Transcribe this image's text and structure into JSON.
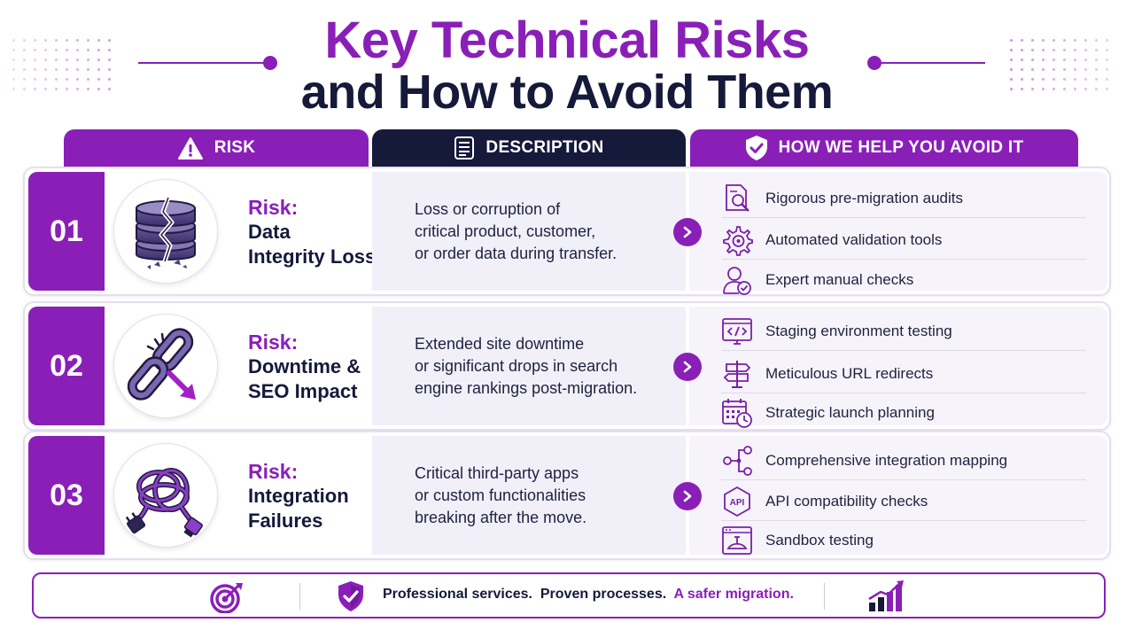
{
  "title": {
    "line1": "Key Technical Risks",
    "line2": "and How to Avoid Them"
  },
  "columns": {
    "risk": "RISK",
    "description": "DESCRIPTION",
    "help": "HOW WE HELP YOU AVOID IT"
  },
  "colors": {
    "accent": "#8a1fb8",
    "dark": "#15193a",
    "description_bg": "#f1eff8",
    "help_bg": "#f6f3fa"
  },
  "rows": [
    {
      "number": "01",
      "risk_label": "Risk:",
      "risk_name_1": "Data",
      "risk_name_2": "Integrity Loss",
      "icon": "broken-database-icon",
      "description_1": "Loss or corruption of",
      "description_2": "critical product, customer,",
      "description_3": "or order data during transfer.",
      "help": [
        {
          "icon": "document-magnifier-icon",
          "text": "Rigorous pre-migration audits"
        },
        {
          "icon": "gear-icon",
          "text": "Automated validation tools"
        },
        {
          "icon": "user-check-icon",
          "text": "Expert manual checks"
        }
      ]
    },
    {
      "number": "02",
      "risk_label": "Risk:",
      "risk_name_1": "Downtime &",
      "risk_name_2": "SEO Impact",
      "icon": "broken-link-icon",
      "description_1": "Extended site downtime",
      "description_2": "or significant drops in search",
      "description_3": "engine rankings post-migration.",
      "help": [
        {
          "icon": "code-window-icon",
          "text": "Staging environment testing"
        },
        {
          "icon": "signpost-icon",
          "text": "Meticulous URL redirects"
        },
        {
          "icon": "calendar-clock-icon",
          "text": "Strategic launch planning"
        }
      ]
    },
    {
      "number": "03",
      "risk_label": "Risk:",
      "risk_name_1": "Integration",
      "risk_name_2": "Failures",
      "icon": "tangled-cables-icon",
      "description_1": "Critical third-party apps",
      "description_2": "or custom functionalities",
      "description_3": "breaking after the move.",
      "help": [
        {
          "icon": "integration-map-icon",
          "text": "Comprehensive integration mapping"
        },
        {
          "icon": "api-badge-icon",
          "text": "API compatibility checks"
        },
        {
          "icon": "sandbox-window-icon",
          "text": "Sandbox testing"
        }
      ]
    }
  ],
  "footer": {
    "part1": "Professional services.",
    "part2": "Proven processes.",
    "part3": "A safer migration."
  }
}
